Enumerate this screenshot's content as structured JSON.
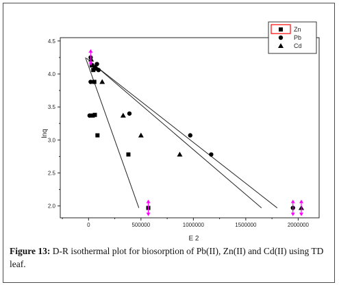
{
  "caption": {
    "label": "Figure 13:",
    "text": "D-R isothermal plot for biosorption of Pb(II), Zn(II) and Cd(II) using TD leaf."
  },
  "chart_data": {
    "type": "scatter",
    "xlabel": "E 2",
    "ylabel": "lnq",
    "xlim": [
      -270000,
      2200000
    ],
    "ylim": [
      1.82,
      4.55
    ],
    "xticks": [
      0,
      500000,
      1000000,
      1500000,
      2000000
    ],
    "xtick_labels": [
      "0",
      "500000",
      "1000000",
      "1500000",
      "2000000"
    ],
    "yticks": [
      2.0,
      2.5,
      3.0,
      3.5,
      4.0,
      4.5
    ],
    "ytick_labels": [
      "2.0",
      "2.5",
      "3.0",
      "3.5",
      "4.0",
      "4.5"
    ],
    "grid": false,
    "legend_position": "top-right",
    "series": [
      {
        "name": "Zn",
        "marker": "square",
        "color": "#000000",
        "points": [
          [
            30000,
            4.13
          ],
          [
            45000,
            4.06
          ],
          [
            55000,
            3.88
          ],
          [
            40000,
            3.37
          ],
          [
            60000,
            3.38
          ],
          [
            85000,
            3.07
          ],
          [
            380000,
            2.78
          ],
          [
            570000,
            1.97
          ]
        ],
        "fit_line": [
          [
            -30000,
            4.25
          ],
          [
            480000,
            1.97
          ]
        ]
      },
      {
        "name": "Pb",
        "marker": "circle",
        "color": "#000000",
        "points": [
          [
            20000,
            4.25
          ],
          [
            60000,
            4.1
          ],
          [
            80000,
            4.15
          ],
          [
            95000,
            4.06
          ],
          [
            20000,
            3.88
          ],
          [
            10000,
            3.37
          ],
          [
            390000,
            3.4
          ],
          [
            970000,
            3.07
          ],
          [
            1170000,
            2.78
          ],
          [
            1950000,
            1.97
          ]
        ],
        "fit_line": [
          [
            -20000,
            4.24
          ],
          [
            1650000,
            1.97
          ]
        ]
      },
      {
        "name": "Cd",
        "marker": "triangle",
        "color": "#000000",
        "points": [
          [
            25000,
            4.22
          ],
          [
            75000,
            4.08
          ],
          [
            130000,
            3.88
          ],
          [
            330000,
            3.37
          ],
          [
            500000,
            3.07
          ],
          [
            870000,
            2.78
          ],
          [
            2030000,
            1.97
          ]
        ],
        "fit_line": [
          [
            20000,
            4.18
          ],
          [
            1800000,
            1.97
          ]
        ]
      }
    ],
    "highlight_markers": [
      {
        "x": 20000,
        "y": 4.25,
        "color": "#ff00ff"
      },
      {
        "x": 570000,
        "y": 1.97,
        "color": "#ff00ff"
      },
      {
        "x": 1950000,
        "y": 1.97,
        "color": "#ff00ff"
      },
      {
        "x": 2030000,
        "y": 1.97,
        "color": "#ff00ff"
      }
    ],
    "legend_highlight_color": "#ff0000"
  }
}
